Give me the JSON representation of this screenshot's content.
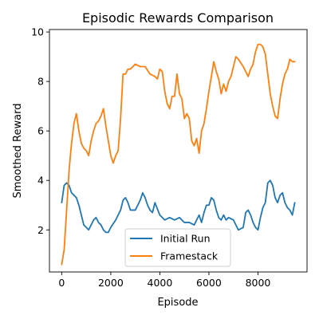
{
  "chart_data": {
    "type": "line",
    "title": "Episodic Rewards Comparison",
    "xlabel": "Episode",
    "ylabel": "Smoothed Reward",
    "xlim": [
      -500,
      10000
    ],
    "ylim": [
      0.3,
      10.1
    ],
    "xticks": [
      0,
      2000,
      4000,
      6000,
      8000
    ],
    "yticks": [
      2,
      4,
      6,
      8,
      10
    ],
    "grid": false,
    "legend_position": "lower center",
    "series": [
      {
        "name": "Initial Run",
        "color": "#1f77b4",
        "x": [
          0,
          100,
          200,
          300,
          400,
          500,
          600,
          700,
          800,
          900,
          1000,
          1100,
          1200,
          1300,
          1400,
          1500,
          1600,
          1700,
          1800,
          1900,
          2000,
          2200,
          2400,
          2500,
          2600,
          2700,
          2800,
          3000,
          3200,
          3300,
          3400,
          3500,
          3600,
          3700,
          3800,
          4000,
          4200,
          4400,
          4600,
          4800,
          5000,
          5200,
          5400,
          5600,
          5700,
          5800,
          5900,
          6000,
          6100,
          6200,
          6300,
          6400,
          6500,
          6600,
          6700,
          6800,
          7000,
          7200,
          7400,
          7500,
          7600,
          7700,
          7800,
          7900,
          8000,
          8100,
          8200,
          8300,
          8400,
          8500,
          8600,
          8700,
          8800,
          8900,
          9000,
          9100,
          9200,
          9300,
          9400,
          9500
        ],
        "y": [
          3.1,
          3.8,
          3.9,
          3.8,
          3.5,
          3.4,
          3.3,
          3.0,
          2.6,
          2.2,
          2.1,
          2.0,
          2.2,
          2.4,
          2.5,
          2.3,
          2.2,
          2.0,
          1.9,
          1.9,
          2.1,
          2.4,
          2.8,
          3.2,
          3.3,
          3.1,
          2.8,
          2.8,
          3.2,
          3.5,
          3.3,
          3.0,
          2.8,
          2.7,
          3.1,
          2.6,
          2.4,
          2.5,
          2.4,
          2.5,
          2.3,
          2.3,
          2.2,
          2.6,
          2.3,
          2.7,
          3.0,
          3.0,
          3.3,
          3.2,
          2.8,
          2.5,
          2.4,
          2.6,
          2.4,
          2.5,
          2.4,
          2.0,
          2.1,
          2.7,
          2.8,
          2.6,
          2.3,
          2.1,
          2.0,
          2.5,
          2.9,
          3.1,
          3.9,
          4.0,
          3.8,
          3.3,
          3.1,
          3.4,
          3.5,
          3.1,
          2.9,
          2.8,
          2.6,
          3.1
        ]
      },
      {
        "name": "Framestack",
        "color": "#ff7f0e",
        "x": [
          0,
          100,
          200,
          300,
          400,
          500,
          600,
          700,
          800,
          900,
          1000,
          1100,
          1200,
          1300,
          1400,
          1500,
          1600,
          1700,
          1800,
          1900,
          2000,
          2100,
          2200,
          2300,
          2400,
          2500,
          2600,
          2700,
          2800,
          3000,
          3200,
          3400,
          3600,
          3800,
          3900,
          4000,
          4100,
          4200,
          4300,
          4400,
          4500,
          4600,
          4700,
          4800,
          4900,
          5000,
          5100,
          5200,
          5300,
          5400,
          5500,
          5600,
          5700,
          5800,
          5900,
          6000,
          6100,
          6200,
          6300,
          6400,
          6500,
          6600,
          6700,
          6800,
          6900,
          7000,
          7100,
          7200,
          7400,
          7600,
          7700,
          7800,
          7900,
          8000,
          8100,
          8200,
          8300,
          8400,
          8500,
          8600,
          8700,
          8800,
          8900,
          9000,
          9100,
          9200,
          9300,
          9400,
          9500
        ],
        "y": [
          0.6,
          1.2,
          2.8,
          4.4,
          5.5,
          6.3,
          6.7,
          6.0,
          5.5,
          5.3,
          5.2,
          5.0,
          5.6,
          6.0,
          6.3,
          6.4,
          6.6,
          6.9,
          6.2,
          5.6,
          5.0,
          4.7,
          5.0,
          5.2,
          6.5,
          8.3,
          8.3,
          8.5,
          8.5,
          8.7,
          8.6,
          8.6,
          8.3,
          8.2,
          8.1,
          8.5,
          8.4,
          7.6,
          7.1,
          6.9,
          7.4,
          7.4,
          8.3,
          7.5,
          7.3,
          6.5,
          6.7,
          6.5,
          5.6,
          5.4,
          5.7,
          5.1,
          6.0,
          6.3,
          6.9,
          7.6,
          8.2,
          8.8,
          8.4,
          8.1,
          7.5,
          7.9,
          7.6,
          8.0,
          8.2,
          8.6,
          9.0,
          8.9,
          8.6,
          8.2,
          8.5,
          8.7,
          9.2,
          9.5,
          9.5,
          9.4,
          9.1,
          8.3,
          7.5,
          7.0,
          6.6,
          6.5,
          7.3,
          7.9,
          8.3,
          8.5,
          8.9,
          8.8,
          8.8
        ]
      }
    ]
  }
}
